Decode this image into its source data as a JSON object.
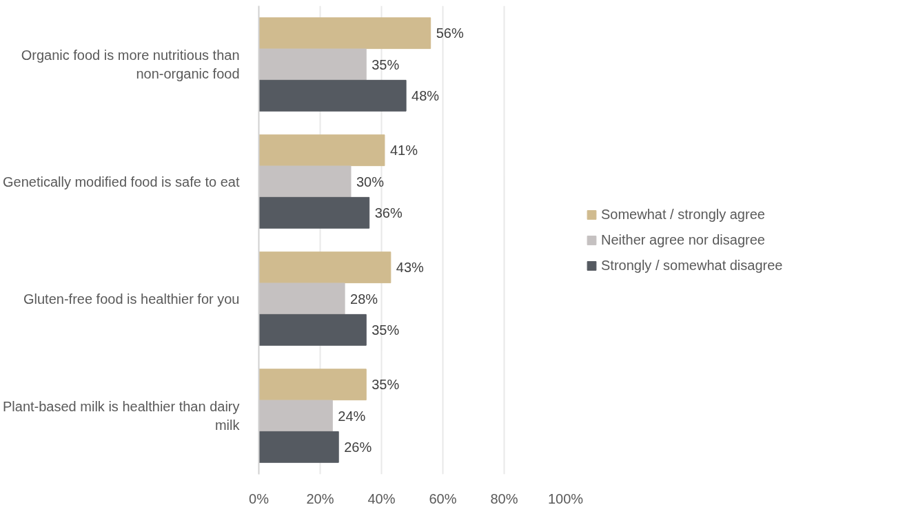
{
  "chart_data": {
    "type": "bar",
    "orientation": "horizontal",
    "categories": [
      "Organic food is more nutritious than non-organic food",
      "Genetically modified food is safe to eat",
      "Gluten-free food is healthier for you",
      "Plant-based milk is healthier than dairy milk"
    ],
    "series": [
      {
        "name": "Somewhat / strongly agree",
        "color": "#d0bb8f",
        "values": [
          56,
          41,
          43,
          35
        ],
        "value_labels": [
          "56%",
          "41%",
          "43%",
          "35%"
        ]
      },
      {
        "name": "Neither agree nor disagree",
        "color": "#c5c1c1",
        "values": [
          35,
          30,
          28,
          24
        ],
        "value_labels": [
          "35%",
          "30%",
          "28%",
          "24%"
        ]
      },
      {
        "name": "Strongly / somewhat disagree",
        "color": "#555a61",
        "values": [
          48,
          36,
          35,
          26
        ],
        "value_labels": [
          "48%",
          "36%",
          "35%",
          "26%"
        ]
      }
    ],
    "xlim": [
      0,
      100
    ],
    "xticks": [
      {
        "value": 0,
        "label": "0%"
      },
      {
        "value": 20,
        "label": "20%"
      },
      {
        "value": 40,
        "label": "40%"
      },
      {
        "value": 60,
        "label": "60%"
      },
      {
        "value": 80,
        "label": "80%"
      },
      {
        "value": 100,
        "label": "100%"
      }
    ],
    "grid": "x",
    "legend": "right"
  }
}
